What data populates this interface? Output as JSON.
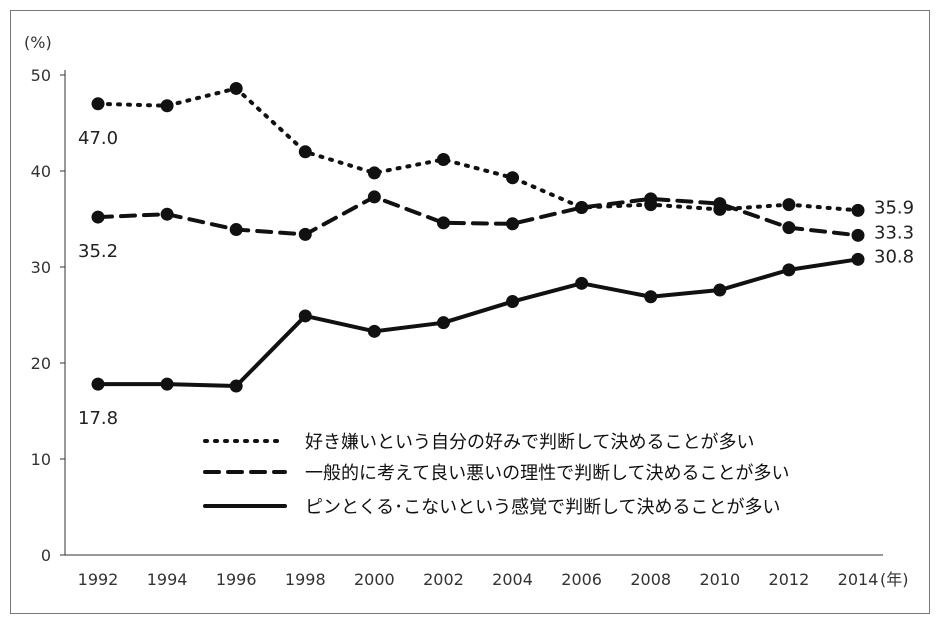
{
  "chart_data": {
    "type": "line",
    "y_unit": "(%)",
    "x_unit": "(年)",
    "x": [
      "1992",
      "1994",
      "1996",
      "1998",
      "2000",
      "2002",
      "2004",
      "2006",
      "2008",
      "2010",
      "2012",
      "2014"
    ],
    "ylim": [
      0,
      50
    ],
    "yticks": [
      "0",
      "10",
      "20",
      "30",
      "40",
      "50"
    ],
    "grid": false,
    "legend_position": "bottom-right",
    "series": [
      {
        "name": "好き嫌いという自分の好みで判断して決めることが多い",
        "style": "dotted",
        "values": [
          47.0,
          46.8,
          48.6,
          42.0,
          39.8,
          41.2,
          39.3,
          36.2,
          36.5,
          36.0,
          36.5,
          35.9
        ],
        "labels": [
          {
            "index": 0,
            "text": "47.0"
          },
          {
            "index": 11,
            "text": "35.9"
          }
        ]
      },
      {
        "name": "一般的に考えて良い悪いの理性で判断して決めることが多い",
        "style": "dashed",
        "values": [
          35.2,
          35.5,
          33.9,
          33.4,
          37.3,
          34.6,
          34.5,
          36.2,
          37.1,
          36.6,
          34.1,
          33.3
        ],
        "labels": [
          {
            "index": 0,
            "text": "35.2"
          },
          {
            "index": 11,
            "text": "33.3"
          }
        ]
      },
      {
        "name": "ピンとくる･こないという感覚で判断して決めることが多い",
        "style": "solid",
        "values": [
          17.8,
          17.8,
          17.6,
          24.9,
          23.3,
          24.2,
          26.4,
          28.3,
          26.9,
          27.6,
          29.7,
          30.8
        ],
        "labels": [
          {
            "index": 0,
            "text": "17.8"
          },
          {
            "index": 11,
            "text": "30.8"
          }
        ]
      }
    ]
  }
}
